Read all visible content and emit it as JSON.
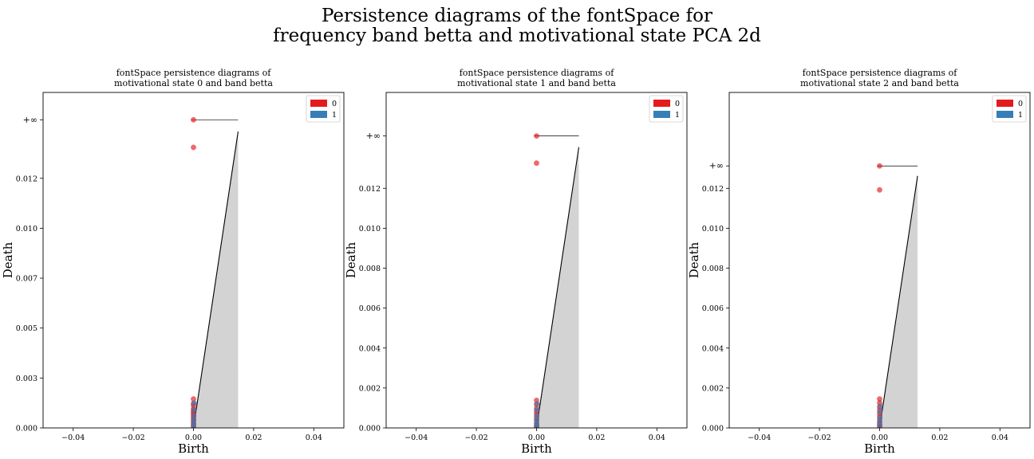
{
  "suptitle": {
    "line1": "Persistence diagrams of the fontSpace for",
    "line2": "frequency band betta and motivational state PCA 2d"
  },
  "chart_data": [
    {
      "type": "scatter",
      "title": [
        "fontSpace persistence diagrams of",
        "motivational state 0 and band betta"
      ],
      "xlabel": "Birth",
      "ylabel": "Death",
      "xlim": [
        -0.05,
        0.05
      ],
      "ylim": [
        0,
        0.0168
      ],
      "infinity_value": 0.01543,
      "infinity_label": "+∞",
      "xticks": [
        -0.04,
        -0.02,
        0.0,
        0.02,
        0.04
      ],
      "xtick_labels": [
        "−0.04",
        "−0.02",
        "0.00",
        "0.02",
        "0.04"
      ],
      "yticks": [
        0.0,
        0.0025,
        0.005,
        0.0075,
        0.01,
        0.0125
      ],
      "ytick_labels": [
        "0.000",
        "0.003",
        "0.005",
        "0.007",
        "0.010",
        "0.012"
      ],
      "diagonal_max": 0.01484,
      "legend": {
        "position": "upper right",
        "entries": [
          {
            "label": "0",
            "color": "#e41a1c"
          },
          {
            "label": "1",
            "color": "#377eb8"
          }
        ]
      },
      "series": [
        {
          "name": "0",
          "color": "#e41a1c",
          "points": [
            [
              0,
              0.01543
            ],
            [
              0,
              0.01405
            ],
            [
              0,
              0.00145
            ],
            [
              0,
              0.00122
            ],
            [
              0,
              0.00112
            ],
            [
              0,
              0.00095
            ],
            [
              0,
              0.00085
            ],
            [
              0,
              0.00075
            ],
            [
              0,
              0.00065
            ],
            [
              0,
              0.00055
            ],
            [
              0,
              0.00045
            ],
            [
              0,
              0.00035
            ],
            [
              0,
              0.00025
            ],
            [
              0,
              0.00015
            ],
            [
              0,
              5e-05
            ]
          ]
        },
        {
          "name": "1",
          "color": "#377eb8",
          "points": [
            [
              0.0002,
              0.00125
            ],
            [
              0.0001,
              0.0009
            ],
            [
              0.0001,
              0.0006
            ],
            [
              5e-05,
              0.0004
            ],
            [
              5e-05,
              0.0002
            ],
            [
              3e-05,
              0.0001
            ]
          ]
        }
      ]
    },
    {
      "type": "scatter",
      "title": [
        "fontSpace persistence diagrams of",
        "motivational state 1 and band betta"
      ],
      "xlabel": "Birth",
      "ylabel": "Death",
      "xlim": [
        -0.05,
        0.05
      ],
      "ylim": [
        0,
        0.0168
      ],
      "infinity_value": 0.01462,
      "infinity_label": "+∞",
      "xticks": [
        -0.04,
        -0.02,
        0.0,
        0.02,
        0.04
      ],
      "xtick_labels": [
        "−0.04",
        "−0.02",
        "0.00",
        "0.02",
        "0.04"
      ],
      "yticks": [
        0.0,
        0.002,
        0.004,
        0.006,
        0.008,
        0.01,
        0.012
      ],
      "ytick_labels": [
        "0.000",
        "0.002",
        "0.004",
        "0.006",
        "0.008",
        "0.010",
        "0.012"
      ],
      "diagonal_max": 0.01406,
      "legend": {
        "position": "upper right",
        "entries": [
          {
            "label": "0",
            "color": "#e41a1c"
          },
          {
            "label": "1",
            "color": "#377eb8"
          }
        ]
      },
      "series": [
        {
          "name": "0",
          "color": "#e41a1c",
          "points": [
            [
              0,
              0.01462
            ],
            [
              0,
              0.01326
            ],
            [
              0,
              0.00138
            ],
            [
              0,
              0.00118
            ],
            [
              0,
              0.00098
            ],
            [
              0,
              0.00082
            ],
            [
              0,
              0.00068
            ],
            [
              0,
              0.00052
            ],
            [
              0,
              0.00038
            ],
            [
              0,
              0.00024
            ],
            [
              0,
              0.00012
            ],
            [
              0,
              4e-05
            ]
          ]
        },
        {
          "name": "1",
          "color": "#377eb8",
          "points": [
            [
              0.0002,
              0.0012
            ],
            [
              0.0001,
              0.0009
            ],
            [
              0.0001,
              0.0006
            ],
            [
              5e-05,
              0.0004
            ],
            [
              5e-05,
              0.0002
            ],
            [
              3e-05,
              0.0001
            ]
          ]
        }
      ]
    },
    {
      "type": "scatter",
      "title": [
        "fontSpace persistence diagrams of",
        "motivational state 2 and band betta"
      ],
      "xlabel": "Birth",
      "ylabel": "Death",
      "xlim": [
        -0.05,
        0.05
      ],
      "ylim": [
        0,
        0.0168
      ],
      "infinity_value": 0.01312,
      "infinity_label": "+∞",
      "xticks": [
        -0.04,
        -0.02,
        0.0,
        0.02,
        0.04
      ],
      "xtick_labels": [
        "−0.04",
        "−0.02",
        "0.00",
        "0.02",
        "0.04"
      ],
      "yticks": [
        0.0,
        0.002,
        0.004,
        0.006,
        0.008,
        0.01,
        0.012
      ],
      "ytick_labels": [
        "0.000",
        "0.002",
        "0.004",
        "0.006",
        "0.008",
        "0.010",
        "0.012"
      ],
      "diagonal_max": 0.01262,
      "legend": {
        "position": "upper right",
        "entries": [
          {
            "label": "0",
            "color": "#e41a1c"
          },
          {
            "label": "1",
            "color": "#377eb8"
          }
        ]
      },
      "series": [
        {
          "name": "0",
          "color": "#e41a1c",
          "points": [
            [
              0,
              0.01312
            ],
            [
              0,
              0.01192
            ],
            [
              0,
              0.00145
            ],
            [
              0,
              0.00125
            ],
            [
              0,
              0.00105
            ],
            [
              0,
              0.00088
            ],
            [
              0,
              0.00072
            ],
            [
              0,
              0.00056
            ],
            [
              0,
              0.0004
            ],
            [
              0,
              0.00026
            ],
            [
              0,
              0.00014
            ],
            [
              0,
              5e-05
            ]
          ]
        },
        {
          "name": "1",
          "color": "#377eb8",
          "points": [
            [
              0.0002,
              0.0011
            ],
            [
              0.0001,
              0.0008
            ],
            [
              0.0001,
              0.0005
            ],
            [
              5e-05,
              0.0003
            ],
            [
              5e-05,
              0.00015
            ]
          ]
        }
      ]
    }
  ]
}
